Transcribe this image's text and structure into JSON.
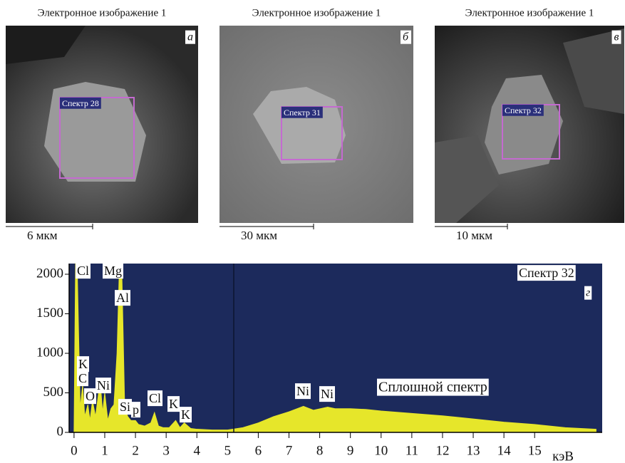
{
  "panels": [
    {
      "caption": "Электронное изображение 1",
      "letter": "а",
      "spectrum": "Спектр 28",
      "scale": "6 мкм"
    },
    {
      "caption": "Электронное изображение 1",
      "letter": "б",
      "spectrum": "Спектр 31",
      "scale": "30 мкм"
    },
    {
      "caption": "Электронное изображение 1",
      "letter": "в",
      "spectrum": "Спектр 32",
      "scale": "10 мкм"
    }
  ],
  "chart_data": {
    "type": "area",
    "x_label": "кэВ",
    "color": "#e6e62a",
    "background": "#1c2a5c",
    "x": [
      0,
      0.05,
      0.1,
      0.2,
      0.28,
      0.35,
      0.45,
      0.52,
      0.6,
      0.7,
      0.85,
      0.93,
      1.0,
      1.1,
      1.2,
      1.3,
      1.4,
      1.48,
      1.55,
      1.65,
      1.75,
      1.85,
      2.0,
      2.1,
      2.3,
      2.5,
      2.62,
      2.75,
      2.9,
      3.1,
      3.31,
      3.45,
      3.59,
      3.8,
      4.0,
      4.5,
      5.0,
      5.5,
      6.0,
      6.5,
      7.0,
      7.47,
      7.8,
      8.26,
      8.5,
      9,
      9.5,
      10,
      11,
      12,
      13,
      14,
      15,
      16,
      17
    ],
    "values": [
      0,
      2135,
      2135,
      300,
      600,
      200,
      350,
      150,
      400,
      200,
      650,
      250,
      500,
      150,
      300,
      350,
      1000,
      2135,
      2135,
      300,
      200,
      150,
      150,
      100,
      80,
      120,
      250,
      80,
      60,
      60,
      150,
      60,
      120,
      50,
      40,
      30,
      30,
      60,
      120,
      200,
      260,
      330,
      280,
      320,
      300,
      300,
      290,
      270,
      240,
      210,
      170,
      130,
      100,
      60,
      40
    ],
    "xlim": [
      -0.16,
      17.2
    ],
    "ylim": [
      0,
      2135
    ],
    "xticks": [
      0,
      1,
      2,
      3,
      4,
      5,
      6,
      7,
      8,
      9,
      10,
      11,
      12,
      13,
      14,
      15
    ],
    "yticks": [
      0,
      500,
      1000,
      1500,
      2000
    ],
    "annotations": [
      "Cl",
      "Mg",
      "Al",
      "K",
      "C",
      "O",
      "Ni",
      "Si",
      "p",
      "Cl",
      "K",
      "K",
      "Ni",
      "Ni",
      "Сплошной спектр",
      "Спектр 32",
      "г"
    ]
  }
}
